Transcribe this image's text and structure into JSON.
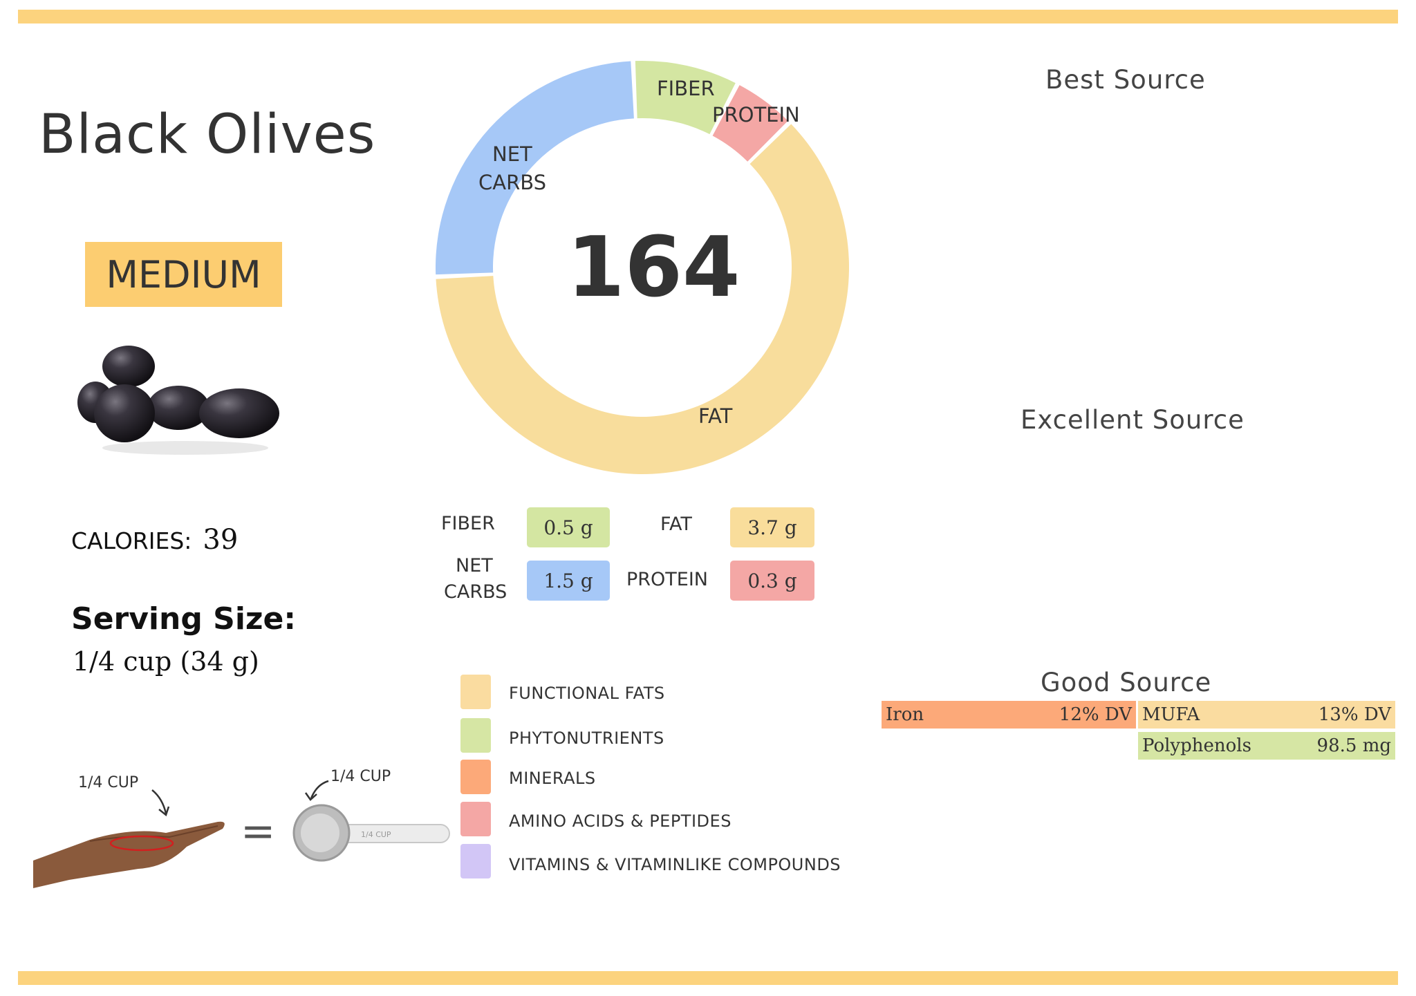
{
  "title": "Black Olives",
  "level_badge": "MEDIUM",
  "calories": {
    "label": "CALORIES:",
    "value": "39"
  },
  "serving": {
    "title": "Serving Size:",
    "value": "1/4 cup (34 g)"
  },
  "serving_illustration": {
    "hand_label": "1/4 CUP",
    "equals": "=",
    "cup_label": "1/4 CUP",
    "handle_text": "1/4 CUP"
  },
  "chart_data": {
    "type": "pie",
    "center_value": "164",
    "categories": [
      "FIBER",
      "PROTEIN",
      "FAT",
      "NET CARBS"
    ],
    "values": [
      0.5,
      0.3,
      3.7,
      1.5
    ],
    "colors": [
      "#d4e6a2",
      "#f4a7a5",
      "#f8dd9c",
      "#a6c8f7"
    ]
  },
  "donut_labels": {
    "fiber": "FIBER",
    "protein": "PROTEIN",
    "fat": "FAT",
    "net_carbs_1": "NET",
    "net_carbs_2": "CARBS"
  },
  "macros": {
    "fiber": {
      "label": "FIBER",
      "value": "0.5 g",
      "color": "#d4e6a2"
    },
    "fat": {
      "label": "FAT",
      "value": "3.7 g",
      "color": "#f9dd9b"
    },
    "net_carbs": {
      "label_1": "NET",
      "label_2": "CARBS",
      "value": "1.5 g",
      "color": "#a6c8f7"
    },
    "protein": {
      "label": "PROTEIN",
      "value": "0.3 g",
      "color": "#f4a7a5"
    }
  },
  "legend": [
    {
      "label": "FUNCTIONAL FATS",
      "color": "#fadca0"
    },
    {
      "label": "PHYTONUTRIENTS",
      "color": "#d6e6a4"
    },
    {
      "label": "MINERALS",
      "color": "#fca979"
    },
    {
      "label": "AMINO ACIDS & PEPTIDES",
      "color": "#f4a7a5"
    },
    {
      "label": "VITAMINS & VITAMINLIKE COMPOUNDS",
      "color": "#d2c6f6"
    }
  ],
  "sources": {
    "best": {
      "heading": "Best Source"
    },
    "excellent": {
      "heading": "Excellent Source"
    },
    "good": {
      "heading": "Good Source",
      "items": [
        {
          "name": "Iron",
          "amount": "12% DV",
          "category": "MINERALS",
          "color": "#fca979"
        },
        {
          "name": "MUFA",
          "amount": "13% DV",
          "category": "FUNCTIONAL FATS",
          "color": "#fadca0"
        },
        {
          "name": "Polyphenols",
          "amount": "98.5 mg",
          "category": "PHYTONUTRIENTS",
          "color": "#d6e6a4"
        }
      ]
    }
  }
}
